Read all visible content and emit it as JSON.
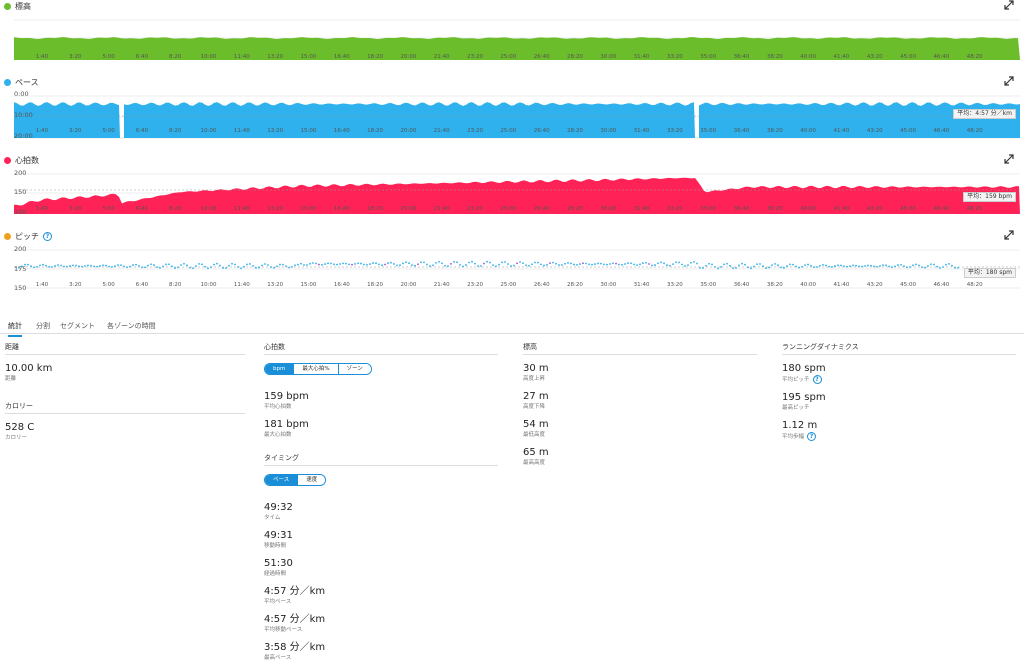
{
  "charts": {
    "elevation": {
      "title": "標高",
      "color": "#6cbd2c"
    },
    "pace": {
      "title": "ペース",
      "color": "#2eb1ec",
      "y_labels": [
        "0:00",
        "10:00",
        "20:00"
      ],
      "avg_label": "平均：4:57 分／km"
    },
    "heart_rate": {
      "title": "心拍数",
      "color": "#ff2256",
      "y_labels": [
        "200",
        "150",
        "100"
      ],
      "avg_label": "平均：159 bpm"
    },
    "cadence": {
      "title": "ピッチ",
      "color": "#f0a020",
      "y_labels": [
        "200",
        "175",
        "150"
      ],
      "avg_label": "平均：180 spm"
    }
  },
  "x_ticks": [
    "1:40",
    "3:20",
    "5:00",
    "6:40",
    "8:20",
    "10:00",
    "11:40",
    "13:20",
    "15:00",
    "16:40",
    "18:20",
    "20:00",
    "21:40",
    "23:20",
    "25:00",
    "26:40",
    "28:20",
    "30:00",
    "31:40",
    "33:20",
    "35:00",
    "36:40",
    "38:20",
    "40:00",
    "41:40",
    "43:20",
    "45:00",
    "46:40",
    "48:20"
  ],
  "tabs": [
    "統計",
    "分割",
    "セグメント",
    "各ゾーンの時間"
  ],
  "distance": {
    "header": "距離",
    "stats": [
      {
        "value": "10.00 km",
        "label": "距離"
      }
    ]
  },
  "calories": {
    "header": "カロリー",
    "stats": [
      {
        "value": "528 C",
        "label": "カロリー"
      }
    ]
  },
  "heart": {
    "header": "心拍数",
    "toggle": [
      "bpm",
      "最大心拍%",
      "ゾーン"
    ],
    "stats": [
      {
        "value": "159 bpm",
        "label": "平均心拍数"
      },
      {
        "value": "181 bpm",
        "label": "最大心拍数"
      }
    ]
  },
  "timing": {
    "header": "タイミング",
    "toggle": [
      "ペース",
      "速度"
    ],
    "stats": [
      {
        "value": "49:32",
        "label": "タイム"
      },
      {
        "value": "49:31",
        "label": "移動時間"
      },
      {
        "value": "51:30",
        "label": "経過時間"
      },
      {
        "value": "4:57 分／km",
        "label": "平均ペース"
      },
      {
        "value": "4:57 分／km",
        "label": "平均移動ペース"
      },
      {
        "value": "3:58 分／km",
        "label": "最高ペース"
      }
    ]
  },
  "elevation": {
    "header": "標高",
    "stats": [
      {
        "value": "30 m",
        "label": "高度上昇"
      },
      {
        "value": "27 m",
        "label": "高度下降"
      },
      {
        "value": "54 m",
        "label": "最低高度"
      },
      {
        "value": "65 m",
        "label": "最高高度"
      }
    ]
  },
  "dynamics": {
    "header": "ランニングダイナミクス",
    "stats": [
      {
        "value": "180 spm",
        "label": "平均ピッチ"
      },
      {
        "value": "195 spm",
        "label": "最高ピッチ"
      },
      {
        "value": "1.12 m",
        "label": "平均歩幅"
      }
    ]
  }
}
